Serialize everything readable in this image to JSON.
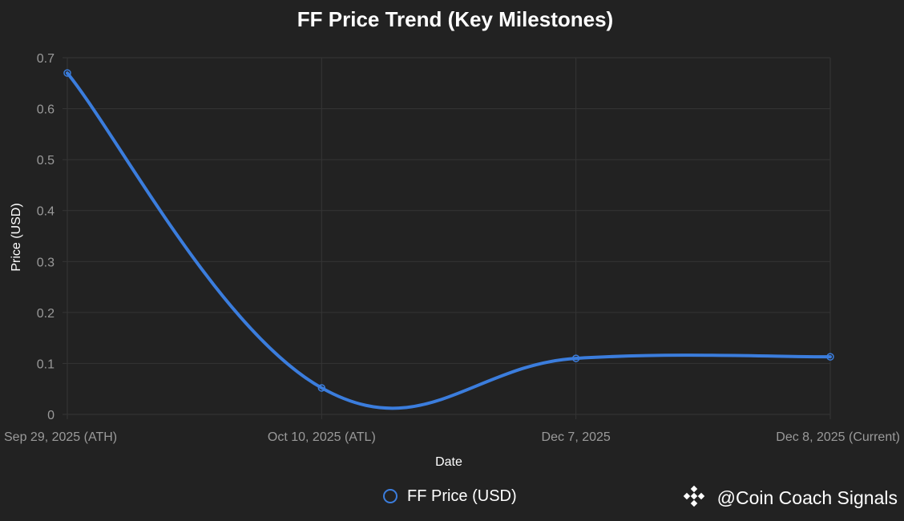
{
  "chart_data": {
    "type": "line",
    "title": "FF Price Trend (Key Milestones)",
    "xlabel": "Date",
    "ylabel": "Price (USD)",
    "categories": [
      "Sep 29, 2025 (ATH)",
      "Oct 10, 2025 (ATL)",
      "Dec 7, 2025",
      "Dec 8, 2025 (Current)"
    ],
    "series": [
      {
        "name": "FF Price (USD)",
        "values": [
          0.67,
          0.052,
          0.11,
          0.113
        ],
        "color": "#3b7ddd"
      }
    ],
    "ylim": [
      0,
      0.7
    ],
    "yticks": [
      {
        "value": 0,
        "label": "0"
      },
      {
        "value": 0.1,
        "label": "0.1"
      },
      {
        "value": 0.2,
        "label": "0.2"
      },
      {
        "value": 0.3,
        "label": "0.3"
      },
      {
        "value": 0.4,
        "label": "0.4"
      },
      {
        "value": 0.5,
        "label": "0.5"
      },
      {
        "value": 0.6,
        "label": "0.6"
      },
      {
        "value": 0.7,
        "label": "0.7"
      }
    ],
    "grid": true,
    "legend_position": "bottom-center",
    "colors": {
      "background": "#222222",
      "grid": "#353535",
      "tick_text": "#9a9a9a",
      "text": "#ffffff"
    }
  },
  "watermark": {
    "text": "@Coin Coach Signals",
    "icon": "binance-logo-icon"
  }
}
